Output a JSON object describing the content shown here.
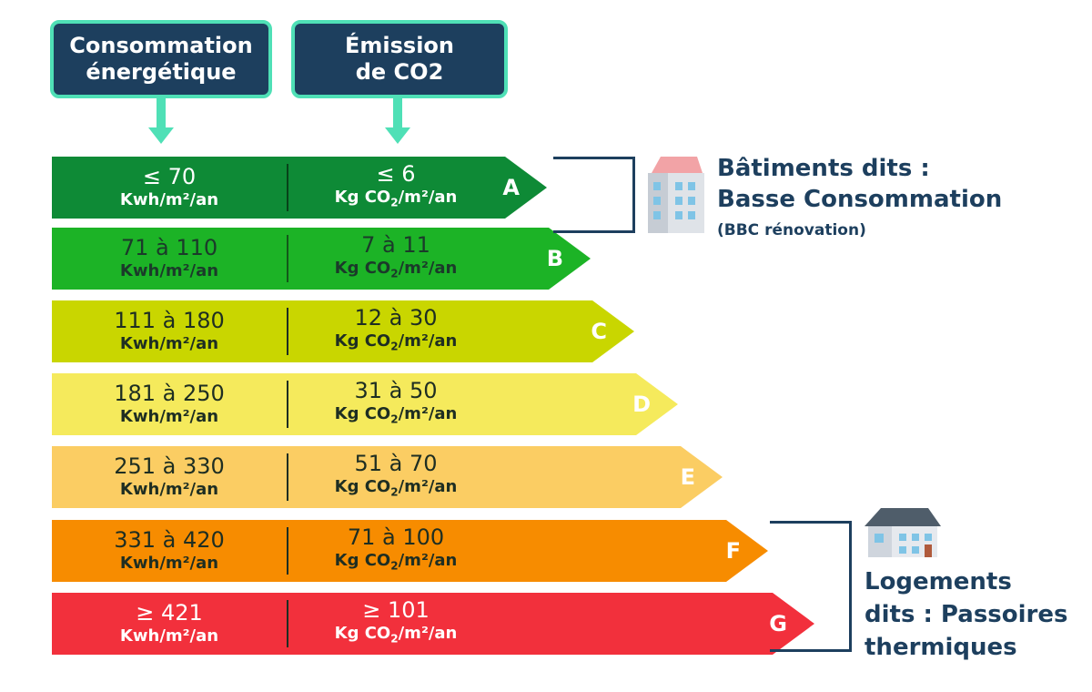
{
  "headers": {
    "energy": "Consommation\nénergétique",
    "co2": "Émission\nde CO2"
  },
  "rows": [
    {
      "class": "A",
      "energy": "≤ 70",
      "co2": "≤ 6",
      "color": "#0e8a36",
      "text_color": "#ffffff",
      "divider_color": "#08421a"
    },
    {
      "class": "B",
      "energy": "71 à 110",
      "co2": "7 à 11",
      "color": "#1cb326",
      "text_color": "#1b3a2a",
      "divider_color": "#13581a"
    },
    {
      "class": "C",
      "energy": "111 à 180",
      "co2": "12 à 30",
      "color": "#c9d600",
      "text_color": "#1e2e22",
      "divider_color": "#1e2e22"
    },
    {
      "class": "D",
      "energy": "181 à 250",
      "co2": "31 à 50",
      "color": "#f5ea5c",
      "text_color": "#1e2e22",
      "divider_color": "#1e2e22"
    },
    {
      "class": "E",
      "energy": "251 à 330",
      "co2": "51 à 70",
      "color": "#fbcd63",
      "text_color": "#1e2e22",
      "divider_color": "#1e2e22"
    },
    {
      "class": "F",
      "energy": "331 à 420",
      "co2": "71 à 100",
      "color": "#f78c00",
      "text_color": "#1e2e22",
      "divider_color": "#1e2e22"
    },
    {
      "class": "G",
      "energy": "≥ 421",
      "co2": "≥ 101",
      "color": "#f2303c",
      "text_color": "#ffffff",
      "divider_color": "#1e2e22"
    }
  ],
  "units": {
    "energy": "Kwh/m²/an",
    "co2_prefix": "Kg CO",
    "co2_sub": "2",
    "co2_suffix": "/m²/an"
  },
  "groups": {
    "bbc": {
      "line1": "Bâtiments dits :",
      "line2": "Basse Consommation",
      "sub": "(BBC rénovation)",
      "icon": "apartment-building-icon"
    },
    "passoires": {
      "line1": "Logements",
      "line2": "dits : Passoires",
      "line3": "thermiques",
      "icon": "house-icon"
    }
  },
  "colors": {
    "navy": "#1d3f5e",
    "mint": "#4fe0b6"
  }
}
